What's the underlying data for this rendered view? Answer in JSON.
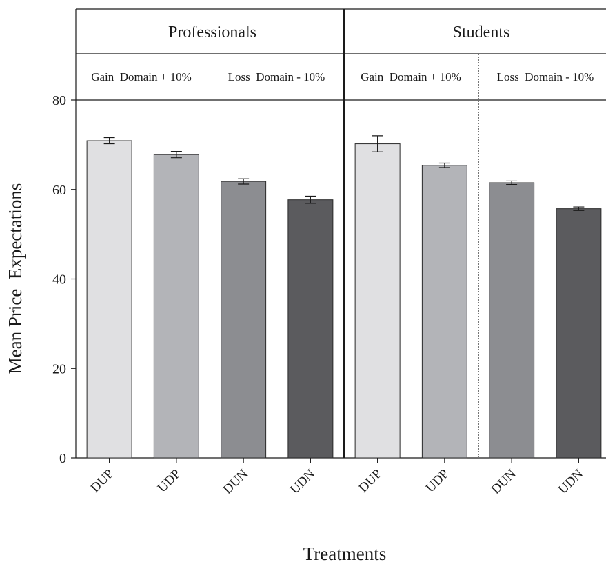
{
  "chart_data": {
    "type": "bar",
    "xlabel": "Treatments",
    "ylabel": "Mean Price  Expectations",
    "ylim": [
      0,
      80
    ],
    "yticks": [
      0,
      20,
      40,
      60,
      80
    ],
    "grid": false,
    "bar_colors": [
      "#e0e0e2",
      "#b3b4b8",
      "#8c8d91",
      "#5b5b5e"
    ],
    "panels": [
      {
        "title": "Professionals",
        "groups": [
          {
            "label": "Gain  Domain + 10%",
            "bars": [
              {
                "category": "DUP",
                "value": 70.9,
                "err_low": 70.2,
                "err_high": 71.6
              },
              {
                "category": "UDP",
                "value": 67.8,
                "err_low": 67.1,
                "err_high": 68.5
              }
            ]
          },
          {
            "label": "Loss  Domain - 10%",
            "bars": [
              {
                "category": "DUN",
                "value": 61.8,
                "err_low": 61.2,
                "err_high": 62.4
              },
              {
                "category": "UDN",
                "value": 57.7,
                "err_low": 56.9,
                "err_high": 58.5
              }
            ]
          }
        ]
      },
      {
        "title": "Students",
        "groups": [
          {
            "label": "Gain  Domain + 10%",
            "bars": [
              {
                "category": "DUP",
                "value": 70.2,
                "err_low": 68.4,
                "err_high": 72.0
              },
              {
                "category": "UDP",
                "value": 65.4,
                "err_low": 64.9,
                "err_high": 65.9
              }
            ]
          },
          {
            "label": "Loss  Domain - 10%",
            "bars": [
              {
                "category": "DUN",
                "value": 61.5,
                "err_low": 61.1,
                "err_high": 61.9
              },
              {
                "category": "UDN",
                "value": 55.7,
                "err_low": 55.3,
                "err_high": 56.1
              }
            ]
          }
        ]
      }
    ]
  }
}
